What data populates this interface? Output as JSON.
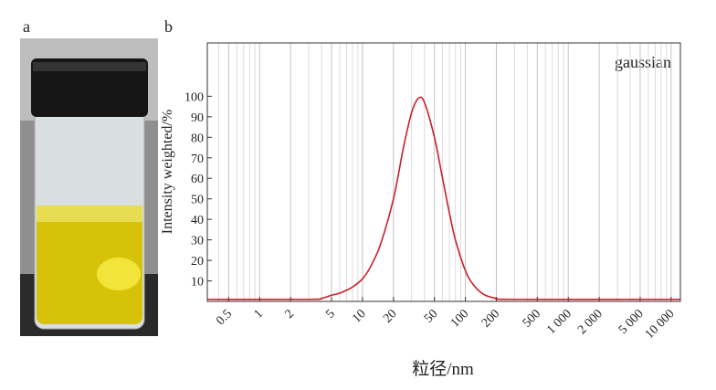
{
  "panel_labels": [
    "a",
    "b"
  ],
  "chart_data": {
    "type": "line",
    "xlabel": "粒径/nm",
    "ylabel": "Intensity weighted/%",
    "annotation": "gaussian",
    "xscale": "log",
    "grid": true,
    "legend": false,
    "xlim": [
      0.31,
      12300
    ],
    "ylim": [
      0,
      126
    ],
    "xticks": [
      0.5,
      1,
      2,
      5,
      10,
      20,
      50,
      100,
      200,
      500,
      {
        "value": 1000,
        "label": "1 000"
      },
      {
        "value": 2000,
        "label": "2 000"
      },
      {
        "value": 5000,
        "label": "5 000"
      },
      {
        "value": 10000,
        "label": "10 000"
      }
    ],
    "minor_xticks": [
      0.4,
      0.6,
      0.7,
      0.8,
      0.9,
      3,
      4,
      6,
      7,
      8,
      9,
      30,
      40,
      60,
      70,
      80,
      90,
      300,
      400,
      600,
      700,
      800,
      900,
      3000,
      4000,
      6000,
      7000,
      8000,
      9000
    ],
    "yticks": [
      10,
      20,
      30,
      40,
      50,
      60,
      70,
      80,
      90,
      100
    ],
    "series": [
      {
        "color": "#c8202a",
        "x": [
          0.31,
          3,
          4,
          5,
          6,
          7,
          8,
          10,
          12,
          15,
          20,
          25,
          30,
          35,
          40,
          50,
          60,
          70,
          80,
          100,
          120,
          150,
          200,
          300,
          12300
        ],
        "values": [
          1,
          1,
          1.5,
          3,
          4,
          5.5,
          7,
          11,
          17,
          28,
          50,
          75,
          92,
          99,
          97,
          80,
          60,
          43,
          30,
          15,
          8,
          3.5,
          1.5,
          1,
          1
        ]
      }
    ]
  }
}
